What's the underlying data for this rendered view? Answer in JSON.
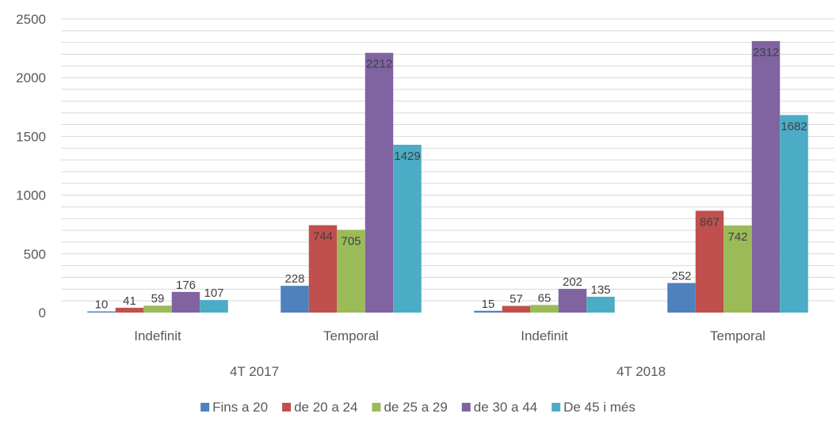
{
  "chart_data": {
    "type": "bar",
    "title": "",
    "xlabel": "",
    "ylabel": "",
    "ylim": [
      0,
      2500
    ],
    "yticks": [
      0,
      500,
      1000,
      1500,
      2000,
      2500
    ],
    "grid": true,
    "legend_position": "bottom",
    "groups": [
      "4T 2017",
      "4T 2018"
    ],
    "categories": [
      "Indefinit",
      "Temporal",
      "Indefinit",
      "Temporal"
    ],
    "category_groups": [
      "4T 2017",
      "4T 2017",
      "4T 2018",
      "4T 2018"
    ],
    "series": [
      {
        "name": "Fins a 20",
        "color": "#4F81BD",
        "values": [
          10,
          228,
          15,
          252
        ]
      },
      {
        "name": "de 20 a 24",
        "color": "#C0504D",
        "values": [
          41,
          744,
          57,
          867
        ]
      },
      {
        "name": "de 25 a 29",
        "color": "#9BBB59",
        "values": [
          59,
          705,
          65,
          742
        ]
      },
      {
        "name": "de 30 a 44",
        "color": "#8064A2",
        "values": [
          176,
          2212,
          202,
          2312
        ]
      },
      {
        "name": "De 45 i més",
        "color": "#4BACC6",
        "values": [
          107,
          1429,
          135,
          1682
        ]
      }
    ]
  }
}
